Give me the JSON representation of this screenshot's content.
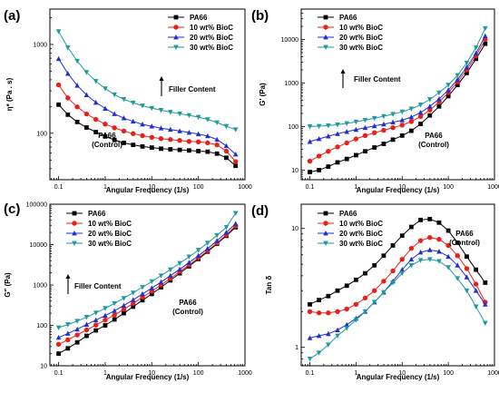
{
  "chart_data": [
    {
      "type": "line",
      "panel": "(a)",
      "xlabel": "Angular Frequency (1/s)",
      "ylabel": "η* (Pa . s)",
      "x_scale": "log",
      "y_scale": "log",
      "xlim": [
        0.065,
        1000
      ],
      "ylim": [
        30,
        2500
      ],
      "x_ticks": [
        0.1,
        1,
        10,
        100,
        1000
      ],
      "x_tick_labels": [
        "0.1",
        "1",
        "10",
        "100",
        "1000"
      ],
      "y_ticks": [
        100,
        1000
      ],
      "y_tick_labels": [
        "100",
        "1000"
      ],
      "legend": "top-right",
      "annotations": [
        {
          "text": "Filler Content",
          "arrow": "up"
        },
        {
          "lines": [
            "PA66",
            "(Control)"
          ]
        }
      ],
      "x": [
        0.1,
        0.158,
        0.251,
        0.398,
        0.631,
        1,
        1.58,
        2.51,
        3.98,
        6.31,
        10,
        15.8,
        25.1,
        39.8,
        63.1,
        100,
        158,
        251,
        398,
        631
      ],
      "series": [
        {
          "name": "PA66",
          "color": "#000000",
          "marker": "square",
          "values": [
            210,
            162,
            134,
            116,
            103,
            92,
            84,
            78,
            74,
            71,
            69,
            67,
            66,
            65,
            64,
            63,
            62,
            59,
            53,
            43
          ]
        },
        {
          "name": "10 wt% BioC",
          "color": "#e8201a",
          "marker": "circle",
          "values": [
            350,
            250,
            198,
            165,
            143,
            127,
            115,
            106,
            99,
            94,
            90,
            87,
            85,
            83,
            81,
            80,
            78,
            74,
            63,
            48
          ]
        },
        {
          "name": "20 wt% BioC",
          "color": "#1f2fd1",
          "marker": "triangle-up",
          "values": [
            690,
            470,
            345,
            270,
            222,
            190,
            165,
            148,
            136,
            126,
            120,
            114,
            110,
            106,
            102,
            98,
            93,
            85,
            72,
            58
          ]
        },
        {
          "name": "30 wt% BioC",
          "color": "#1e9a9a",
          "marker": "triangle-down",
          "values": [
            1400,
            920,
            650,
            485,
            385,
            318,
            272,
            241,
            220,
            204,
            192,
            182,
            173,
            166,
            159,
            152,
            143,
            132,
            120,
            110
          ]
        }
      ]
    },
    {
      "type": "line",
      "panel": "(b)",
      "xlabel": "Angular Frequency (1/s)",
      "ylabel": "G' (Pa)",
      "x_scale": "log",
      "y_scale": "log",
      "xlim": [
        0.065,
        1000
      ],
      "ylim": [
        6,
        50000
      ],
      "x_ticks": [
        0.1,
        1,
        10,
        100,
        1000
      ],
      "x_tick_labels": [
        "0.1",
        "1",
        "10",
        "100",
        "1000"
      ],
      "y_ticks": [
        10,
        100,
        1000,
        10000
      ],
      "y_tick_labels": [
        "10",
        "100",
        "1000",
        "10000"
      ],
      "legend": "top-left",
      "annotations": [
        {
          "text": "Filler Content",
          "arrow": "up"
        },
        {
          "lines": [
            "PA66",
            "(Control)"
          ]
        }
      ],
      "x": [
        0.1,
        0.158,
        0.251,
        0.398,
        0.631,
        1,
        1.58,
        2.51,
        3.98,
        6.31,
        10,
        15.8,
        25.1,
        39.8,
        63.1,
        100,
        158,
        251,
        398,
        631
      ],
      "series": [
        {
          "name": "PA66",
          "color": "#000000",
          "marker": "square",
          "values": [
            9,
            10,
            12,
            15,
            18,
            22,
            27,
            33,
            40,
            50,
            62,
            80,
            115,
            180,
            290,
            500,
            900,
            1700,
            3600,
            8000
          ]
        },
        {
          "name": "10 wt% BioC",
          "color": "#e8201a",
          "marker": "circle",
          "values": [
            16,
            21,
            27,
            34,
            42,
            52,
            62,
            72,
            82,
            94,
            108,
            130,
            170,
            240,
            370,
            600,
            1050,
            2000,
            4200,
            10000
          ]
        },
        {
          "name": "20 wt% BioC",
          "color": "#1f2fd1",
          "marker": "triangle-up",
          "values": [
            45,
            52,
            60,
            68,
            76,
            85,
            94,
            103,
            113,
            125,
            140,
            165,
            210,
            290,
            430,
            690,
            1200,
            2300,
            4800,
            12000
          ]
        },
        {
          "name": "30 wt% BioC",
          "color": "#1e9a9a",
          "marker": "triangle-down",
          "values": [
            100,
            102,
            105,
            110,
            118,
            128,
            140,
            155,
            172,
            192,
            218,
            255,
            315,
            420,
            600,
            900,
            1500,
            2900,
            6500,
            18000
          ]
        }
      ]
    },
    {
      "type": "line",
      "panel": "(c)",
      "xlabel": "Angular Frequency (1/s)",
      "ylabel": "G\" (Pa)",
      "x_scale": "log",
      "y_scale": "log",
      "xlim": [
        0.065,
        1000
      ],
      "ylim": [
        10,
        100000
      ],
      "x_ticks": [
        0.1,
        1,
        10,
        100,
        1000
      ],
      "x_tick_labels": [
        "0.1",
        "1",
        "10",
        "100",
        "1000"
      ],
      "y_ticks": [
        10,
        100,
        1000,
        10000,
        100000
      ],
      "y_tick_labels": [
        "10",
        "100",
        "1000",
        "10000",
        "100000"
      ],
      "legend": "top-left",
      "annotations": [
        {
          "text": "Filler Content",
          "arrow": "up"
        },
        {
          "lines": [
            "PA66",
            "(Control)"
          ]
        }
      ],
      "x": [
        0.1,
        0.158,
        0.251,
        0.398,
        0.631,
        1,
        1.58,
        2.51,
        3.98,
        6.31,
        10,
        15.8,
        25.1,
        39.8,
        63.1,
        100,
        158,
        251,
        398,
        631
      ],
      "series": [
        {
          "name": "PA66",
          "color": "#000000",
          "marker": "square",
          "values": [
            20,
            27,
            38,
            55,
            75,
            100,
            140,
            200,
            290,
            420,
            600,
            880,
            1300,
            1950,
            2900,
            4400,
            6700,
            10500,
            16500,
            27000
          ]
        },
        {
          "name": "10 wt% BioC",
          "color": "#e8201a",
          "marker": "circle",
          "values": [
            34,
            44,
            58,
            77,
            102,
            135,
            180,
            250,
            350,
            500,
            700,
            1000,
            1450,
            2150,
            3150,
            4700,
            7100,
            11000,
            17500,
            29000
          ]
        },
        {
          "name": "20 wt% BioC",
          "color": "#1f2fd1",
          "marker": "triangle-up",
          "values": [
            50,
            63,
            80,
            105,
            135,
            175,
            230,
            310,
            430,
            600,
            840,
            1180,
            1700,
            2450,
            3600,
            5300,
            8000,
            12500,
            20000,
            33000
          ]
        },
        {
          "name": "30 wt% BioC",
          "color": "#1e9a9a",
          "marker": "triangle-down",
          "values": [
            88,
            105,
            128,
            160,
            205,
            265,
            350,
            470,
            640,
            880,
            1220,
            1700,
            2400,
            3450,
            5000,
            7300,
            11000,
            17000,
            27000,
            60000
          ]
        }
      ]
    },
    {
      "type": "line",
      "panel": "(d)",
      "xlabel": "Angular Frequency (1/s)",
      "ylabel": "Tan δ",
      "x_scale": "log",
      "y_scale": "log",
      "xlim": [
        0.065,
        1000
      ],
      "ylim": [
        0.7,
        16
      ],
      "x_ticks": [
        0.1,
        1,
        10,
        100,
        1000
      ],
      "x_tick_labels": [
        "0.1",
        "1",
        "10",
        "100",
        "1000"
      ],
      "y_ticks": [
        1,
        10
      ],
      "y_tick_labels": [
        "1",
        "10"
      ],
      "legend": "top-left",
      "annotations": [
        {
          "lines": [
            "PA66",
            "(Control)"
          ]
        }
      ],
      "x": [
        0.1,
        0.158,
        0.251,
        0.398,
        0.631,
        1,
        1.58,
        2.51,
        3.98,
        6.31,
        10,
        15.8,
        25.1,
        39.8,
        63.1,
        100,
        158,
        251,
        398,
        631
      ],
      "series": [
        {
          "name": "PA66",
          "color": "#000000",
          "marker": "square",
          "values": [
            2.3,
            2.5,
            2.7,
            3.0,
            3.3,
            3.7,
            4.2,
            4.9,
            5.9,
            7.2,
            8.7,
            10.3,
            11.8,
            12.0,
            11.2,
            9.6,
            7.6,
            5.8,
            4.5,
            3.5
          ]
        },
        {
          "name": "10 wt% BioC",
          "color": "#e8201a",
          "marker": "circle",
          "values": [
            2.0,
            1.95,
            1.95,
            2.0,
            2.1,
            2.3,
            2.6,
            3.0,
            3.6,
            4.4,
            5.5,
            6.8,
            7.9,
            8.4,
            8.1,
            7.2,
            5.9,
            4.6,
            3.4,
            2.4
          ]
        },
        {
          "name": "20 wt% BioC",
          "color": "#1f2fd1",
          "marker": "triangle-up",
          "values": [
            1.2,
            1.25,
            1.3,
            1.4,
            1.55,
            1.75,
            2.0,
            2.4,
            2.9,
            3.6,
            4.5,
            5.5,
            6.3,
            6.6,
            6.4,
            5.8,
            4.9,
            3.9,
            3.0,
            2.3
          ]
        },
        {
          "name": "30 wt% BioC",
          "color": "#1e9a9a",
          "marker": "triangle-down",
          "values": [
            0.8,
            0.9,
            1.05,
            1.25,
            1.45,
            1.7,
            2.0,
            2.4,
            2.9,
            3.5,
            4.2,
            4.9,
            5.4,
            5.5,
            5.3,
            4.7,
            3.8,
            3.0,
            2.2,
            1.6
          ]
        }
      ]
    }
  ]
}
